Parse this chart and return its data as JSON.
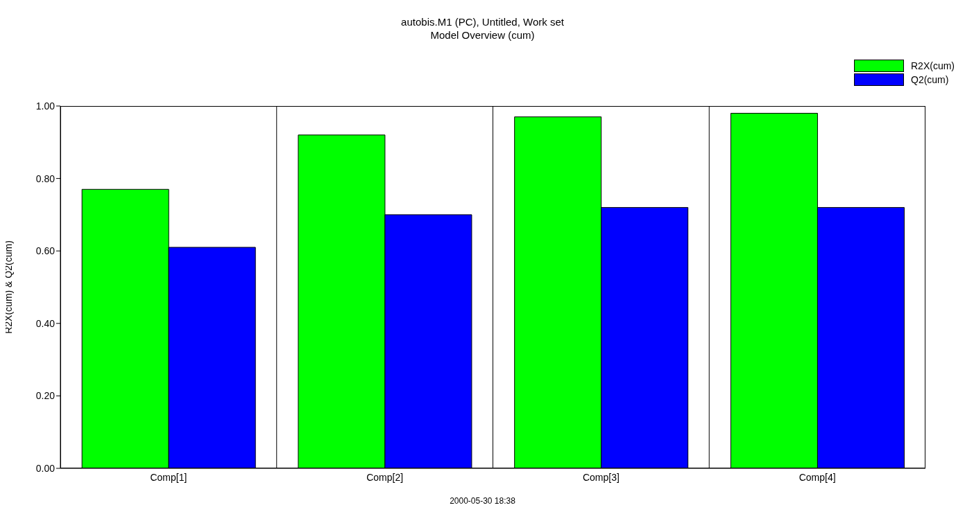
{
  "chart_data": {
    "type": "bar",
    "title": "autobis.M1 (PC), Untitled, Work set",
    "subtitle": "Model Overview (cum)",
    "ylabel": "R2X(cum) & Q2(cum)",
    "categories": [
      "Comp[1]",
      "Comp[2]",
      "Comp[3]",
      "Comp[4]"
    ],
    "series": [
      {
        "name": "R2X(cum)",
        "color": "#00ff00",
        "values": [
          0.77,
          0.92,
          0.97,
          0.98
        ]
      },
      {
        "name": "Q2(cum)",
        "color": "#0000ff",
        "values": [
          0.61,
          0.7,
          0.72,
          0.72
        ]
      }
    ],
    "ylim": [
      0,
      1
    ],
    "yticks": [
      {
        "value": 0,
        "label": "0.00"
      },
      {
        "value": 0.2,
        "label": "0.20"
      },
      {
        "value": 0.4,
        "label": "0.40"
      },
      {
        "value": 0.6,
        "label": "0.60"
      },
      {
        "value": 0.8,
        "label": "0.80"
      },
      {
        "value": 1,
        "label": "1.00"
      }
    ],
    "grid": "x",
    "legend": "top right",
    "annotations": [
      "2000-05-30 18:38"
    ]
  }
}
